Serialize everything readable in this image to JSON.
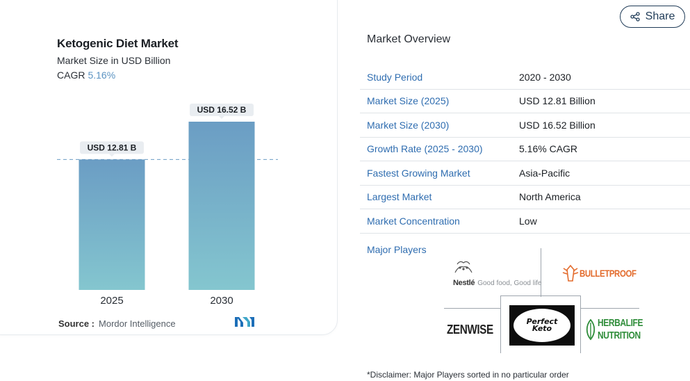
{
  "chart": {
    "title": "Ketogenic Diet Market",
    "subtitle": "Market Size in USD Billion",
    "cagr_label": "CAGR",
    "cagr_value": "5.16%",
    "source_label": "Source :",
    "source_value": "Mordor Intelligence"
  },
  "chart_data": {
    "type": "bar",
    "title": "Ketogenic Diet Market",
    "categories": [
      "2025",
      "2030"
    ],
    "values": [
      12.81,
      16.52
    ],
    "value_labels": [
      "USD 12.81 B",
      "USD 16.52 B"
    ],
    "ylabel": "",
    "xlabel": "",
    "colors": {
      "bar_top": "#6b9dc4",
      "bar_bottom": "#84c6cf",
      "reference_line": "#6b9dc4"
    }
  },
  "share": {
    "label": "Share",
    "icon": "share-icon"
  },
  "overview": {
    "heading": "Market Overview",
    "rows": [
      {
        "label": "Study Period",
        "value": "2020 - 2030"
      },
      {
        "label": "Market Size (2025)",
        "value": "USD 12.81 Billion"
      },
      {
        "label": "Market Size (2030)",
        "value": "USD 16.52 Billion"
      },
      {
        "label": "Growth Rate (2025 - 2030)",
        "value": "5.16% CAGR"
      },
      {
        "label": "Fastest Growing Market",
        "value": "Asia-Pacific"
      },
      {
        "label": "Largest Market",
        "value": "North America"
      },
      {
        "label": "Market Concentration",
        "value": "Low"
      }
    ],
    "players_label": "Major Players",
    "players": {
      "nestle_word": "Nestlé",
      "nestle_tagline": "Good food, Good life",
      "bulletproof": "BULLETPROOF",
      "zenwise": "ZENWISE",
      "perfect_keto_1": "Perfect",
      "perfect_keto_2": "Keto",
      "herbalife_1": "HERBALIFE",
      "herbalife_2": "NUTRITION"
    },
    "disclaimer": "*Disclaimer: Major Players sorted in no particular order"
  },
  "accent_colors": {
    "link_blue": "#2f6db0",
    "cagr_blue": "#5b93c2",
    "share_border": "#1f3b57"
  }
}
